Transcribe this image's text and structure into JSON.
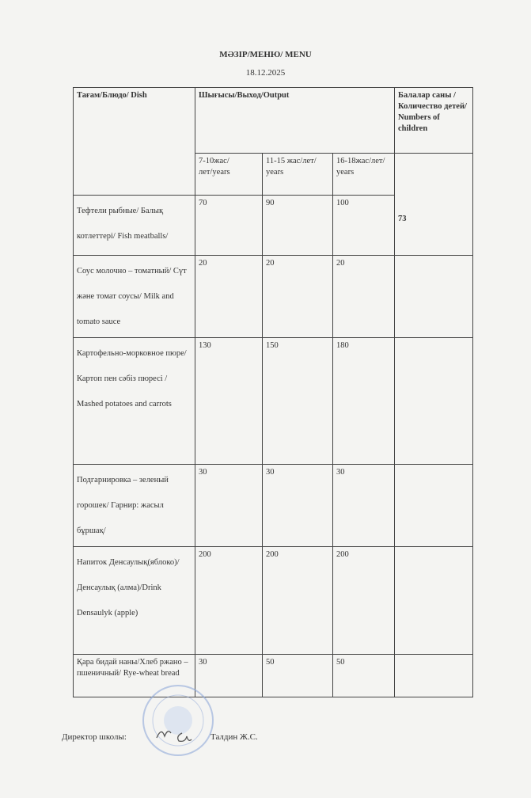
{
  "title": "МӘЗІР/МЕНЮ/ MENU",
  "date": "18.12.2025",
  "table": {
    "headers": {
      "dish": "Тағам/Блюдо/ Dish",
      "output": "Шығысы/Выход/Output",
      "children": "Балалар саны /Количество детей/ Numbers of children",
      "age_groups": [
        "7-10жас/лет/years",
        "11-15 жас/лет/ years",
        "16-18жас/лет/ years"
      ]
    },
    "children_count": "73",
    "rows": [
      {
        "dish": "Тефтели рыбные/ Балық котлеттері/ Fish meatballs/",
        "values": [
          "70",
          "90",
          "100"
        ]
      },
      {
        "dish": "Соус молочно – томатный/ Сүт және томат соусы/ Milk and tomato sauce",
        "values": [
          "20",
          "20",
          "20"
        ]
      },
      {
        "dish": "Картофельно-морковное пюре/ Картоп пен сәбіз пюресі / Mashed potatoes and carrots",
        "values": [
          "130",
          "150",
          "180"
        ]
      },
      {
        "dish": "Подгарнировка – зеленый горошек/ Гарнир: жасыл бұршақ/",
        "values": [
          "30",
          "30",
          "30"
        ]
      },
      {
        "dish": "Напиток Денсаулық(яблоко)/ Денсаулық (алма)/Drink Densaulyk (apple)",
        "values": [
          "200",
          "200",
          "200"
        ]
      },
      {
        "dish": "Қара бидай наны/Хлеб ржано – пшеничный/ Rye-wheat bread",
        "values": [
          "30",
          "50",
          "50"
        ]
      }
    ]
  },
  "footer": {
    "director_label": "Директор школы:",
    "director_name": "Талдин Ж.С."
  },
  "stamp_color": "#8fa8d8"
}
